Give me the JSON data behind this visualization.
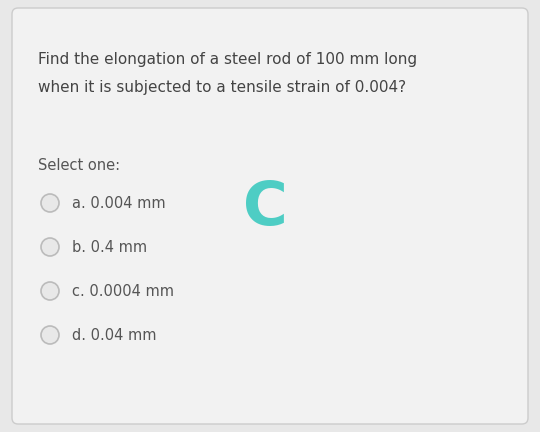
{
  "question_line1": "Find the elongation of a steel rod of 100 mm long",
  "question_line2": "when it is subjected to a tensile strain of 0.004?",
  "select_label": "Select one:",
  "options": [
    "a. 0.004 mm",
    "b. 0.4 mm",
    "c. 0.0004 mm",
    "d. 0.04 mm"
  ],
  "correct_letter": "C",
  "correct_color": "#4ECDC4",
  "background_color": "#E8E8E8",
  "card_color": "#F2F2F2",
  "border_color": "#CCCCCC",
  "text_color": "#444444",
  "option_text_color": "#555555",
  "select_label_color": "#555555",
  "question_fontsize": 11.0,
  "option_fontsize": 10.5,
  "select_fontsize": 10.5,
  "correct_fontsize": 44,
  "radio_edge_color": "#BBBBBB",
  "radio_face_color": "#E8E8E8"
}
